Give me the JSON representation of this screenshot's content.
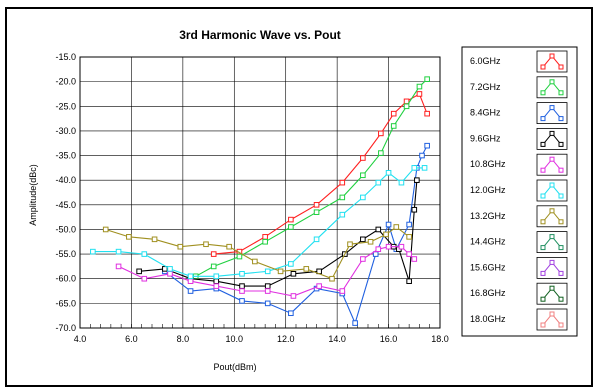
{
  "chart_data": {
    "type": "line",
    "title": "3rd Harmonic Wave vs. Pout",
    "xlabel": "Pout(dBm)",
    "ylabel": "Amplitude(dBc)",
    "xlim": [
      4.0,
      18.0
    ],
    "ylim": [
      -70.0,
      -15.0
    ],
    "xticks": [
      "4.0",
      "6.0",
      "8.0",
      "10.0",
      "12.0",
      "14.0",
      "16.0",
      "18.0"
    ],
    "yticks": [
      "-15.0",
      "-20.0",
      "-25.0",
      "-30.0",
      "-35.0",
      "-40.0",
      "-45.0",
      "-50.0",
      "-55.0",
      "-60.0",
      "-65.0",
      "-70.0"
    ],
    "grid": true,
    "legend_position": "right",
    "series": [
      {
        "name": "6.0GHz",
        "color": "#ff2020",
        "points": [
          [
            9.2,
            -55
          ],
          [
            10.2,
            -54.5
          ],
          [
            11.2,
            -51.5
          ],
          [
            12.2,
            -48
          ],
          [
            13.2,
            -45
          ],
          [
            14.2,
            -40.5
          ],
          [
            15.0,
            -35.5
          ],
          [
            15.7,
            -30.5
          ],
          [
            16.2,
            -26.5
          ],
          [
            16.7,
            -24
          ],
          [
            17.2,
            -22.5
          ],
          [
            17.5,
            -26.5
          ]
        ]
      },
      {
        "name": "7.2GHz",
        "color": "#20d040",
        "points": [
          [
            8.5,
            -59.5
          ],
          [
            9.2,
            -57.5
          ],
          [
            10.2,
            -55.5
          ],
          [
            11.2,
            -52.5
          ],
          [
            12.2,
            -49.5
          ],
          [
            13.2,
            -46.5
          ],
          [
            14.2,
            -43.5
          ],
          [
            15.0,
            -39
          ],
          [
            15.7,
            -34.5
          ],
          [
            16.2,
            -29
          ],
          [
            16.7,
            -25
          ],
          [
            17.2,
            -21
          ],
          [
            17.5,
            -19.5
          ]
        ]
      },
      {
        "name": "8.4GHz",
        "color": "#2060e0",
        "points": [
          [
            7.3,
            -58.5
          ],
          [
            8.3,
            -62.5
          ],
          [
            9.3,
            -62
          ],
          [
            10.3,
            -64.5
          ],
          [
            11.3,
            -65
          ],
          [
            12.2,
            -67
          ],
          [
            13.2,
            -62
          ],
          [
            14.2,
            -63
          ],
          [
            14.7,
            -69
          ],
          [
            15.5,
            -55
          ],
          [
            16.0,
            -49
          ],
          [
            16.3,
            -54
          ],
          [
            16.8,
            -49
          ],
          [
            17.1,
            -37.5
          ],
          [
            17.3,
            -35
          ],
          [
            17.5,
            -33
          ]
        ]
      },
      {
        "name": "9.6GHz",
        "color": "#000000",
        "points": [
          [
            6.3,
            -58.5
          ],
          [
            7.3,
            -58
          ],
          [
            8.3,
            -60
          ],
          [
            9.3,
            -60.5
          ],
          [
            10.3,
            -61.5
          ],
          [
            11.3,
            -61.5
          ],
          [
            12.3,
            -59
          ],
          [
            13.3,
            -58.5
          ],
          [
            14.3,
            -55
          ],
          [
            15.0,
            -52
          ],
          [
            15.6,
            -50
          ],
          [
            16.2,
            -53.5
          ],
          [
            16.4,
            -54
          ],
          [
            16.8,
            -60.5
          ],
          [
            17.0,
            -46
          ],
          [
            17.1,
            -40
          ]
        ]
      },
      {
        "name": "10.8GHz",
        "color": "#e030e0",
        "points": [
          [
            5.5,
            -57.5
          ],
          [
            6.5,
            -60
          ],
          [
            7.5,
            -59
          ],
          [
            8.3,
            -60.5
          ],
          [
            9.3,
            -61.5
          ],
          [
            10.3,
            -62.5
          ],
          [
            11.3,
            -62.5
          ],
          [
            12.3,
            -63.5
          ],
          [
            13.3,
            -61.5
          ],
          [
            14.2,
            -62.5
          ],
          [
            15.0,
            -56
          ],
          [
            15.6,
            -54
          ],
          [
            16.0,
            -53.5
          ],
          [
            16.5,
            -53.5
          ],
          [
            16.8,
            -55
          ],
          [
            17.0,
            -56
          ]
        ]
      },
      {
        "name": "12.0GHz",
        "color": "#20e0f0",
        "points": [
          [
            4.5,
            -54.5
          ],
          [
            5.5,
            -54.5
          ],
          [
            6.5,
            -55
          ],
          [
            7.5,
            -58
          ],
          [
            8.3,
            -59.5
          ],
          [
            9.3,
            -59.5
          ],
          [
            10.3,
            -59
          ],
          [
            11.3,
            -58.5
          ],
          [
            12.2,
            -57
          ],
          [
            13.2,
            -52
          ],
          [
            14.2,
            -47
          ],
          [
            15.0,
            -43.5
          ],
          [
            15.6,
            -40.5
          ],
          [
            16.0,
            -38.5
          ],
          [
            16.5,
            -40.5
          ],
          [
            17.0,
            -37.5
          ],
          [
            17.4,
            -37.5
          ]
        ]
      },
      {
        "name": "13.2GHz",
        "color": "#a09020",
        "points": [
          [
            5.0,
            -50
          ],
          [
            5.9,
            -51.5
          ],
          [
            6.9,
            -52
          ],
          [
            7.9,
            -53.5
          ],
          [
            8.9,
            -53
          ],
          [
            9.8,
            -53.5
          ],
          [
            10.8,
            -56.5
          ],
          [
            11.8,
            -58.5
          ],
          [
            12.8,
            -58
          ],
          [
            13.8,
            -60
          ],
          [
            14.5,
            -53
          ],
          [
            15.3,
            -52.5
          ],
          [
            15.9,
            -51
          ],
          [
            16.3,
            -49.5
          ],
          [
            16.8,
            -51.5
          ]
        ]
      }
    ],
    "legend_only": [
      {
        "name": "14.4GHz",
        "color": "#209060"
      },
      {
        "name": "15.6GHz",
        "color": "#a040e0"
      },
      {
        "name": "16.8GHz",
        "color": "#106020"
      },
      {
        "name": "18.0GHz",
        "color": "#f08080"
      }
    ]
  }
}
